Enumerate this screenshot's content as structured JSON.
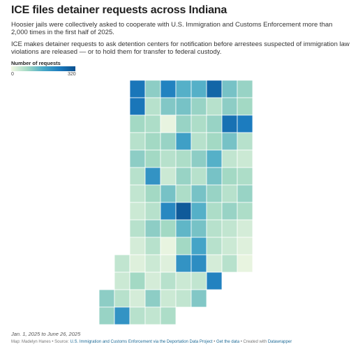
{
  "header": {
    "title": "ICE files detainer requests across Indiana",
    "description": [
      "Hoosier jails were collectively asked to cooperate with U.S. Immigration and Customs Enforcement more than 2,000 times in the first half of 2025.",
      "ICE makes detainer requests to ask detention centers for notification before arrestees suspected of immigration law violations are released — or to hold them for transfer to federal custody."
    ]
  },
  "legend": {
    "title": "Number of requests",
    "range": [
      0,
      320
    ],
    "colors": [
      "#f2f8e4",
      "#a3d9c4",
      "#4aaac8",
      "#1c7cbf",
      "#0a4f8e"
    ]
  },
  "map": {
    "cells": [
      [
        null,
        null,
        250,
        100,
        230,
        150,
        150,
        280,
        120,
        90,
        null
      ],
      [
        null,
        null,
        250,
        60,
        110,
        120,
        90,
        60,
        100,
        80,
        null
      ],
      [
        null,
        null,
        80,
        70,
        10,
        90,
        70,
        90,
        260,
        240,
        null
      ],
      [
        null,
        null,
        60,
        80,
        90,
        180,
        60,
        80,
        120,
        60,
        null
      ],
      [
        null,
        null,
        100,
        80,
        60,
        70,
        100,
        150,
        50,
        40,
        null
      ],
      [
        null,
        null,
        60,
        200,
        40,
        90,
        60,
        120,
        80,
        70,
        null
      ],
      [
        null,
        null,
        50,
        80,
        120,
        70,
        120,
        90,
        60,
        90,
        null
      ],
      [
        null,
        null,
        40,
        60,
        220,
        300,
        150,
        70,
        90,
        70,
        null
      ],
      [
        null,
        null,
        60,
        100,
        80,
        140,
        120,
        60,
        50,
        30,
        null
      ],
      [
        null,
        null,
        30,
        60,
        10,
        80,
        170,
        60,
        40,
        20,
        null
      ],
      [
        null,
        50,
        20,
        40,
        20,
        200,
        210,
        30,
        60,
        10,
        null
      ],
      [
        null,
        40,
        80,
        30,
        60,
        40,
        50,
        230,
        null,
        null,
        null
      ],
      [
        100,
        60,
        30,
        100,
        40,
        50,
        110,
        null,
        null,
        null,
        null
      ],
      [
        90,
        200,
        60,
        50,
        70,
        null,
        null,
        null,
        null,
        null,
        null
      ]
    ]
  },
  "footer": {
    "dates": "Jan. 1, 2025 to June 26, 2025",
    "credit": "Map: Madelyn Hanes • Source: ",
    "source_link": "U.S. Immigration and Customs Enforcement via the Deportation Data Project",
    "sep": " • ",
    "data_link": "Get the data",
    "created": " • Created with ",
    "tool_link": "Datawrapper"
  }
}
